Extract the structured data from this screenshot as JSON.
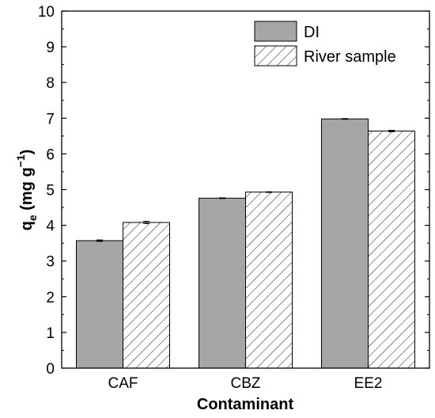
{
  "chart_data": {
    "type": "bar",
    "xlabel": "Contaminant",
    "ylabel": {
      "main": "q",
      "sub": "e",
      "units_open": " (mg g",
      "units_sup": "−1",
      "units_close": ")"
    },
    "categories": [
      "CAF",
      "CBZ",
      "EE2"
    ],
    "ylim": [
      0,
      10
    ],
    "yticks": [
      "0",
      "1",
      "2",
      "3",
      "4",
      "5",
      "6",
      "7",
      "8",
      "9",
      "10"
    ],
    "grid": false,
    "legend_position": "top-right",
    "series": [
      {
        "name": "DI",
        "values": [
          3.57,
          4.76,
          6.98
        ],
        "errors": [
          0.02,
          0.01,
          0.01
        ],
        "style": "solid",
        "color": "#a6a6a6"
      },
      {
        "name": "River sample",
        "values": [
          4.08,
          4.93,
          6.64
        ],
        "errors": [
          0.03,
          0.01,
          0.02
        ],
        "style": "hatched",
        "color": "#ffffff"
      }
    ]
  },
  "colors": {
    "axis": "#000000",
    "bar_edge": "#000000",
    "hatch": "#000000"
  }
}
